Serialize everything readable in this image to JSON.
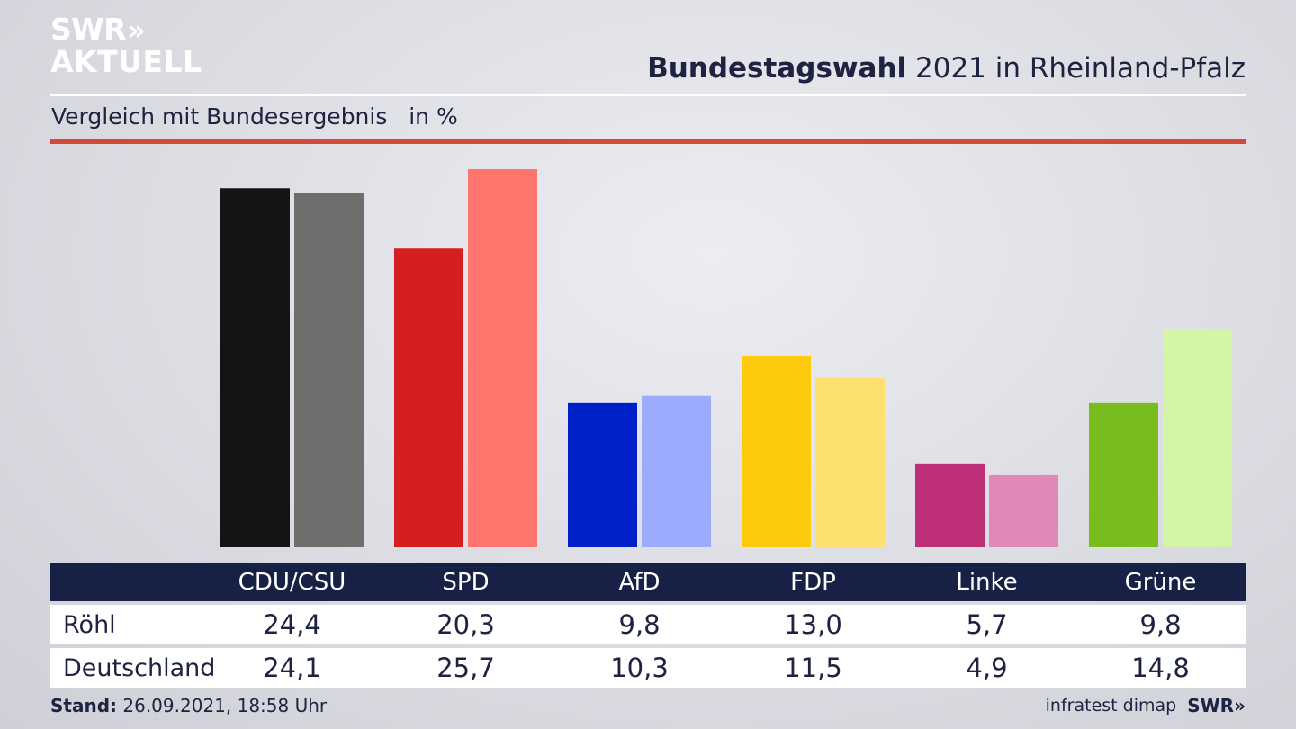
{
  "header": {
    "logo_line1": "SWR",
    "logo_chevrons": "»",
    "logo_line2": "AKTUELL",
    "title_bold": "Bundestagswahl",
    "title_rest": " 2021 in Rheinland-Pfalz",
    "subtitle": "Vergleich mit Bundesergebnis",
    "unit": "in %"
  },
  "chart_data": {
    "type": "bar",
    "title": "Bundestagswahl 2021 in Rheinland-Pfalz",
    "subtitle": "Vergleich mit Bundesergebnis in %",
    "categories": [
      "CDU/CSU",
      "SPD",
      "AfD",
      "FDP",
      "Linke",
      "Grüne"
    ],
    "series": [
      {
        "name": "Röhl",
        "values": [
          24.4,
          20.3,
          9.8,
          13.0,
          5.7,
          9.8
        ],
        "display": [
          "24,4",
          "20,3",
          "9,8",
          "13,0",
          "5,7",
          "9,8"
        ]
      },
      {
        "name": "Deutschland",
        "values": [
          24.1,
          25.7,
          10.3,
          11.5,
          4.9,
          14.8
        ],
        "display": [
          "24,1",
          "25,7",
          "10,3",
          "11,5",
          "4,9",
          "14,8"
        ]
      }
    ],
    "colors": {
      "Röhl": [
        "#141414",
        "#d41e20",
        "#0020c8",
        "#fdcb0b",
        "#bd2f77",
        "#78bc1e"
      ],
      "Deutschland": [
        "#6f6e6c",
        "#ff756e",
        "#9dabff",
        "#fde06f",
        "#e089b7",
        "#d4f4a8"
      ]
    },
    "ylim": [
      0,
      25.7
    ],
    "grid": false,
    "legend": "table-below"
  },
  "footer": {
    "stand_label": "Stand:",
    "stand_value": "26.09.2021, 18:58 Uhr",
    "source": "infratest dimap",
    "brand": "SWR»"
  }
}
